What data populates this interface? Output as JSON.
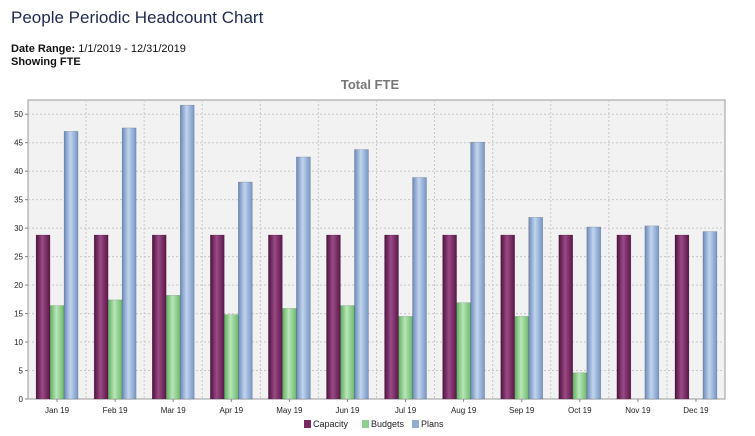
{
  "header": {
    "title": "People Periodic Headcount Chart",
    "date_range_label": "Date Range:",
    "date_range_value": "1/1/2019 - 12/31/2019",
    "showing": "Showing FTE"
  },
  "chart_data": {
    "type": "bar",
    "title": "Total FTE",
    "categories": [
      "Jan 19",
      "Feb 19",
      "Mar 19",
      "Apr 19",
      "May 19",
      "Jun 19",
      "Jul 19",
      "Aug 19",
      "Sep 19",
      "Oct 19",
      "Nov 19",
      "Dec 19"
    ],
    "series": [
      {
        "name": "Capacity",
        "color": "#7a2a62",
        "values": [
          28.8,
          28.8,
          28.8,
          28.8,
          28.8,
          28.8,
          28.8,
          28.8,
          28.8,
          28.8,
          28.8,
          28.8
        ]
      },
      {
        "name": "Budgets",
        "color": "#8fd08f",
        "values": [
          16.4,
          17.4,
          18.2,
          14.8,
          15.9,
          16.4,
          14.5,
          16.9,
          14.5,
          4.6,
          0,
          0
        ]
      },
      {
        "name": "Plans",
        "color": "#93acd2",
        "values": [
          47.0,
          47.6,
          51.6,
          38.1,
          42.5,
          43.8,
          38.9,
          45.1,
          31.9,
          30.2,
          30.4,
          29.4
        ]
      }
    ],
    "yticks": [
      0,
      5,
      10,
      15,
      20,
      25,
      30,
      35,
      40,
      45,
      50
    ],
    "ylim": [
      0,
      52.5
    ],
    "grid": true,
    "legend_position": "bottom"
  }
}
